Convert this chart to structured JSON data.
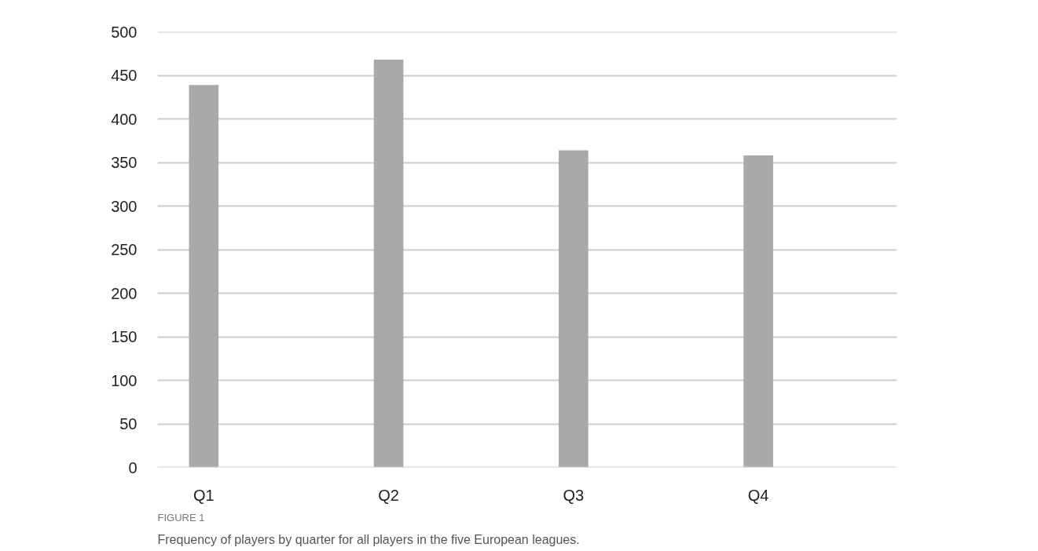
{
  "chart_data": {
    "type": "bar",
    "categories": [
      "Q1",
      "Q2",
      "Q3",
      "Q4"
    ],
    "values": [
      439,
      468,
      364,
      358
    ],
    "color": "#a9a9a9",
    "ylim": [
      0,
      500
    ],
    "yticks": [
      0,
      50,
      100,
      150,
      200,
      250,
      300,
      350,
      400,
      450,
      500
    ],
    "grid": "y",
    "annotations": [
      "FIGURE 1",
      "Frequency of players by quarter for all players in the five European leagues."
    ]
  }
}
